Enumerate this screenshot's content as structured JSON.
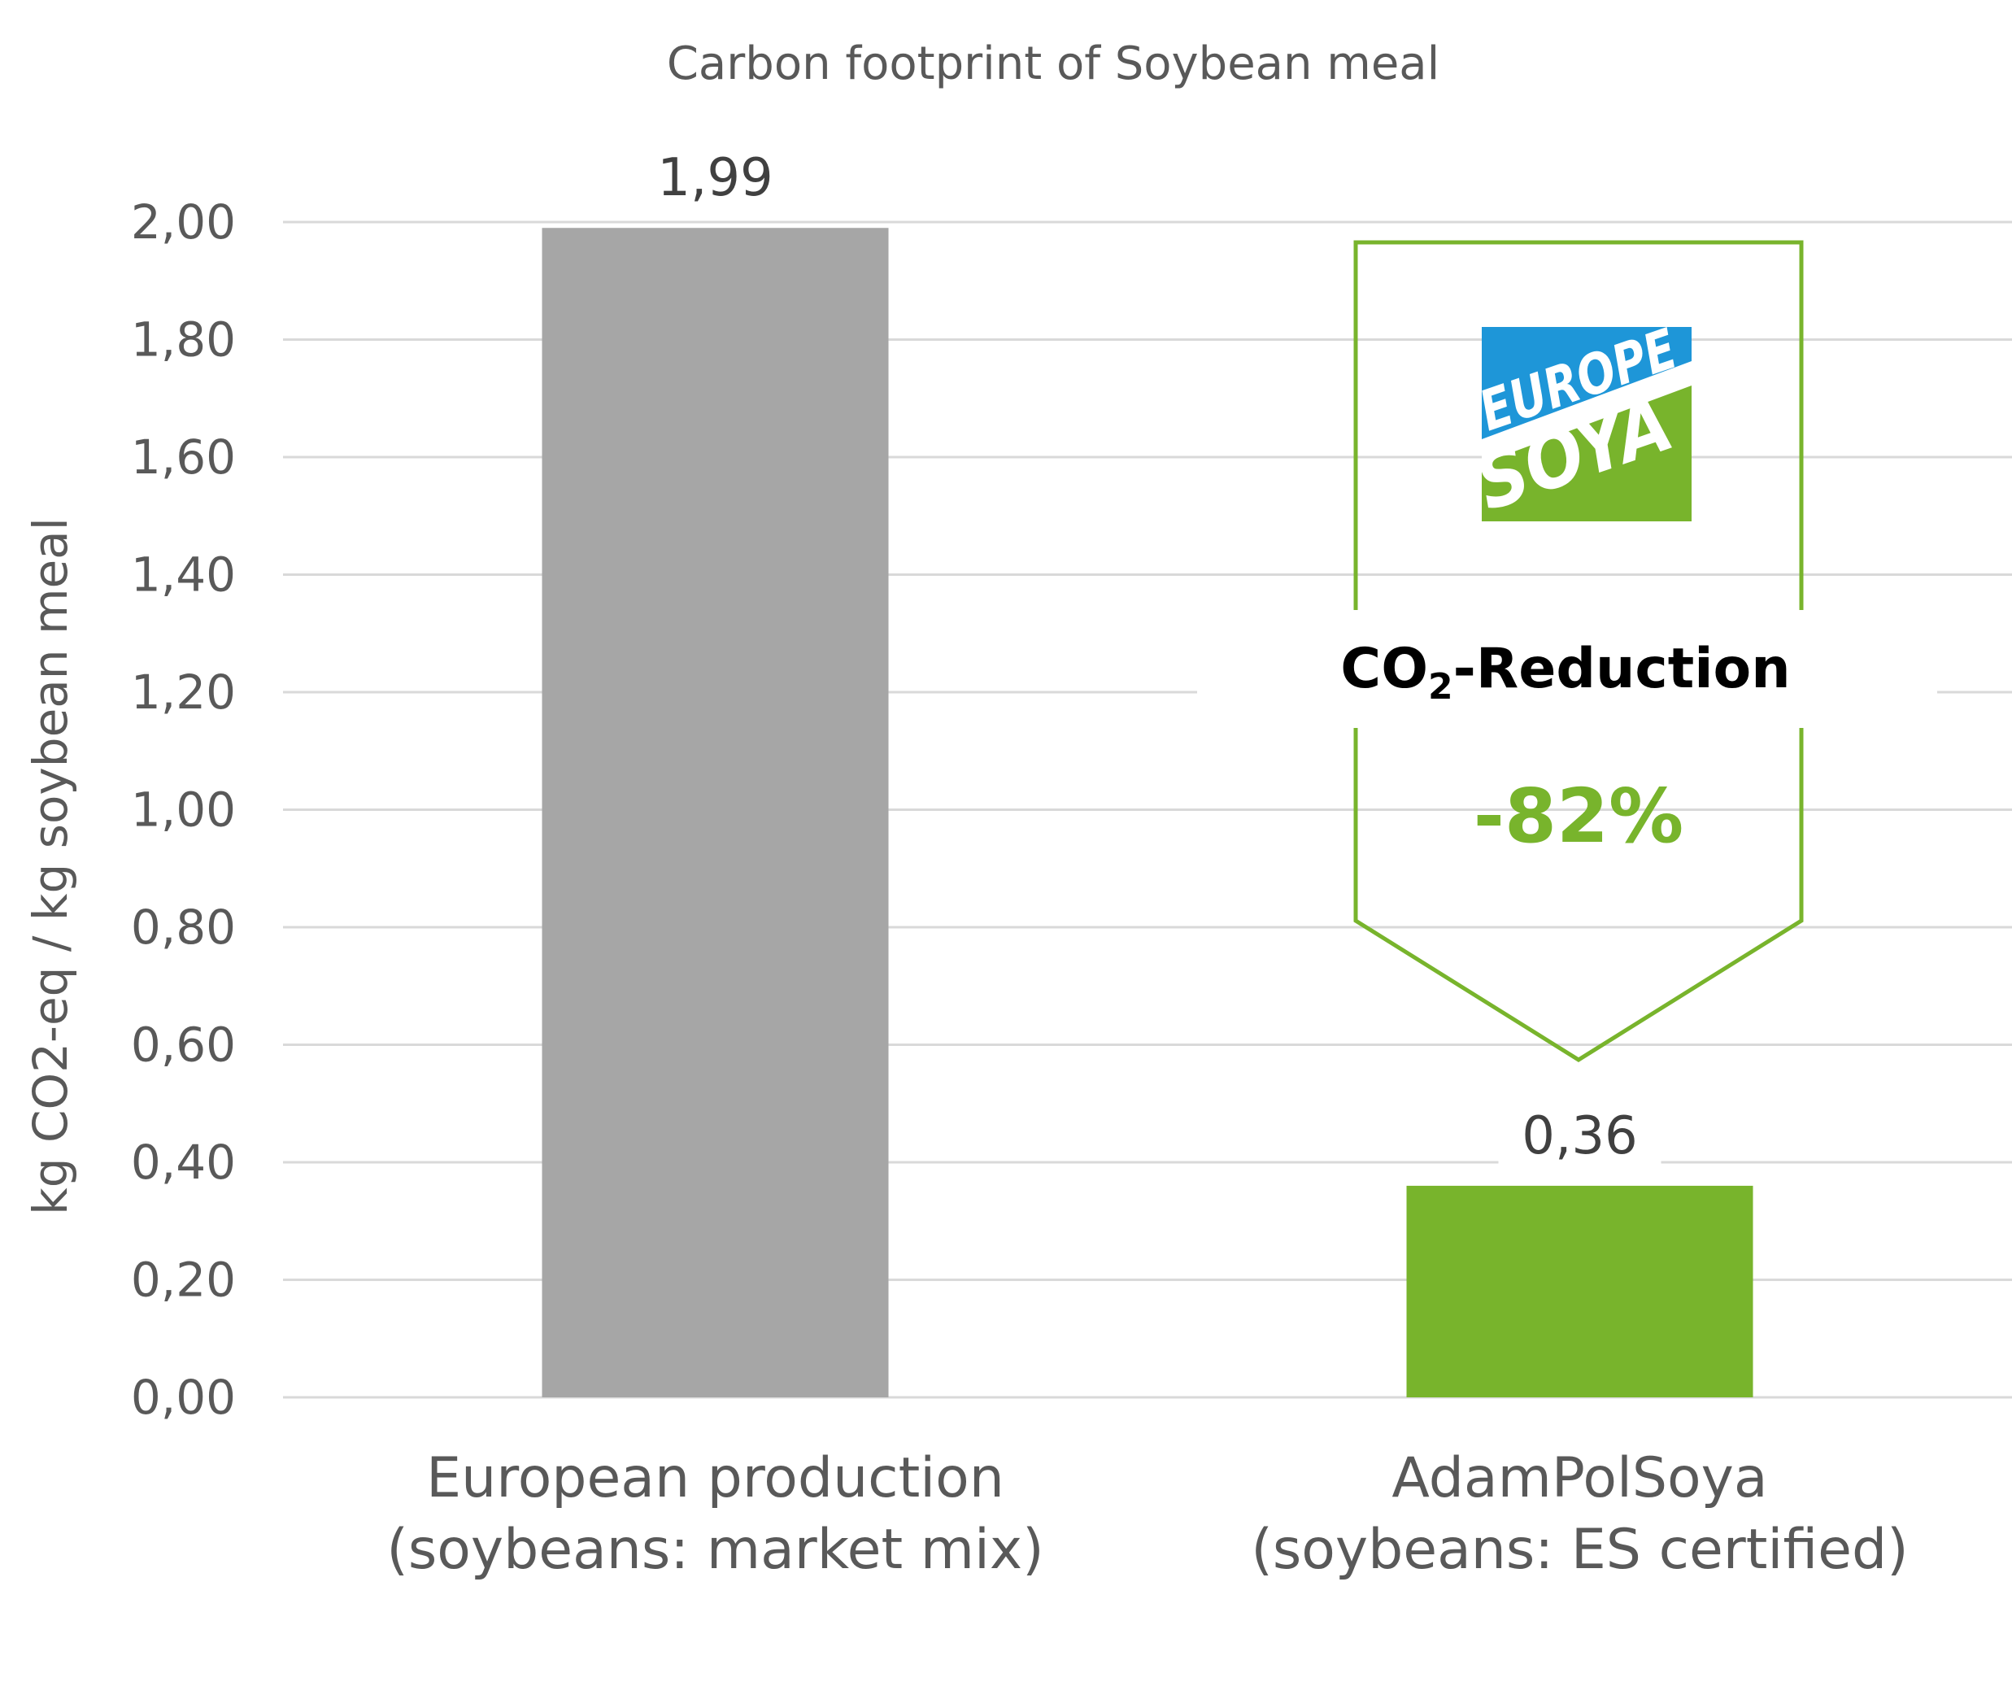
{
  "chart_data": {
    "type": "bar",
    "title": "Carbon footprint of Soybean meal",
    "ylabel": "kg CO2-eq / kg soybean meal",
    "xlabel": "",
    "ylim": [
      0,
      2
    ],
    "yticks": [
      "0,00",
      "0,20",
      "0,40",
      "0,60",
      "0,80",
      "1,00",
      "1,20",
      "1,40",
      "1,60",
      "1,80",
      "2,00"
    ],
    "grid": true,
    "categories": [
      [
        "European production",
        "(soybeans: market mix)"
      ],
      [
        "AdamPolSoya",
        "(soybeans: ES certified)"
      ]
    ],
    "values": [
      1.99,
      0.36
    ],
    "value_labels": [
      "1,99",
      "0,36"
    ],
    "colors": [
      "#a6a6a6",
      "#78b42c"
    ],
    "annotation": {
      "heading_main": "CO",
      "heading_sub": "2",
      "heading_rest": "-Reduction",
      "value": "-82%",
      "color": "#78b42c"
    },
    "logo": {
      "top_text": "EUROPE",
      "bottom_text": "SOYA",
      "top_color": "#1e96d8",
      "bottom_color": "#78b42c"
    }
  }
}
